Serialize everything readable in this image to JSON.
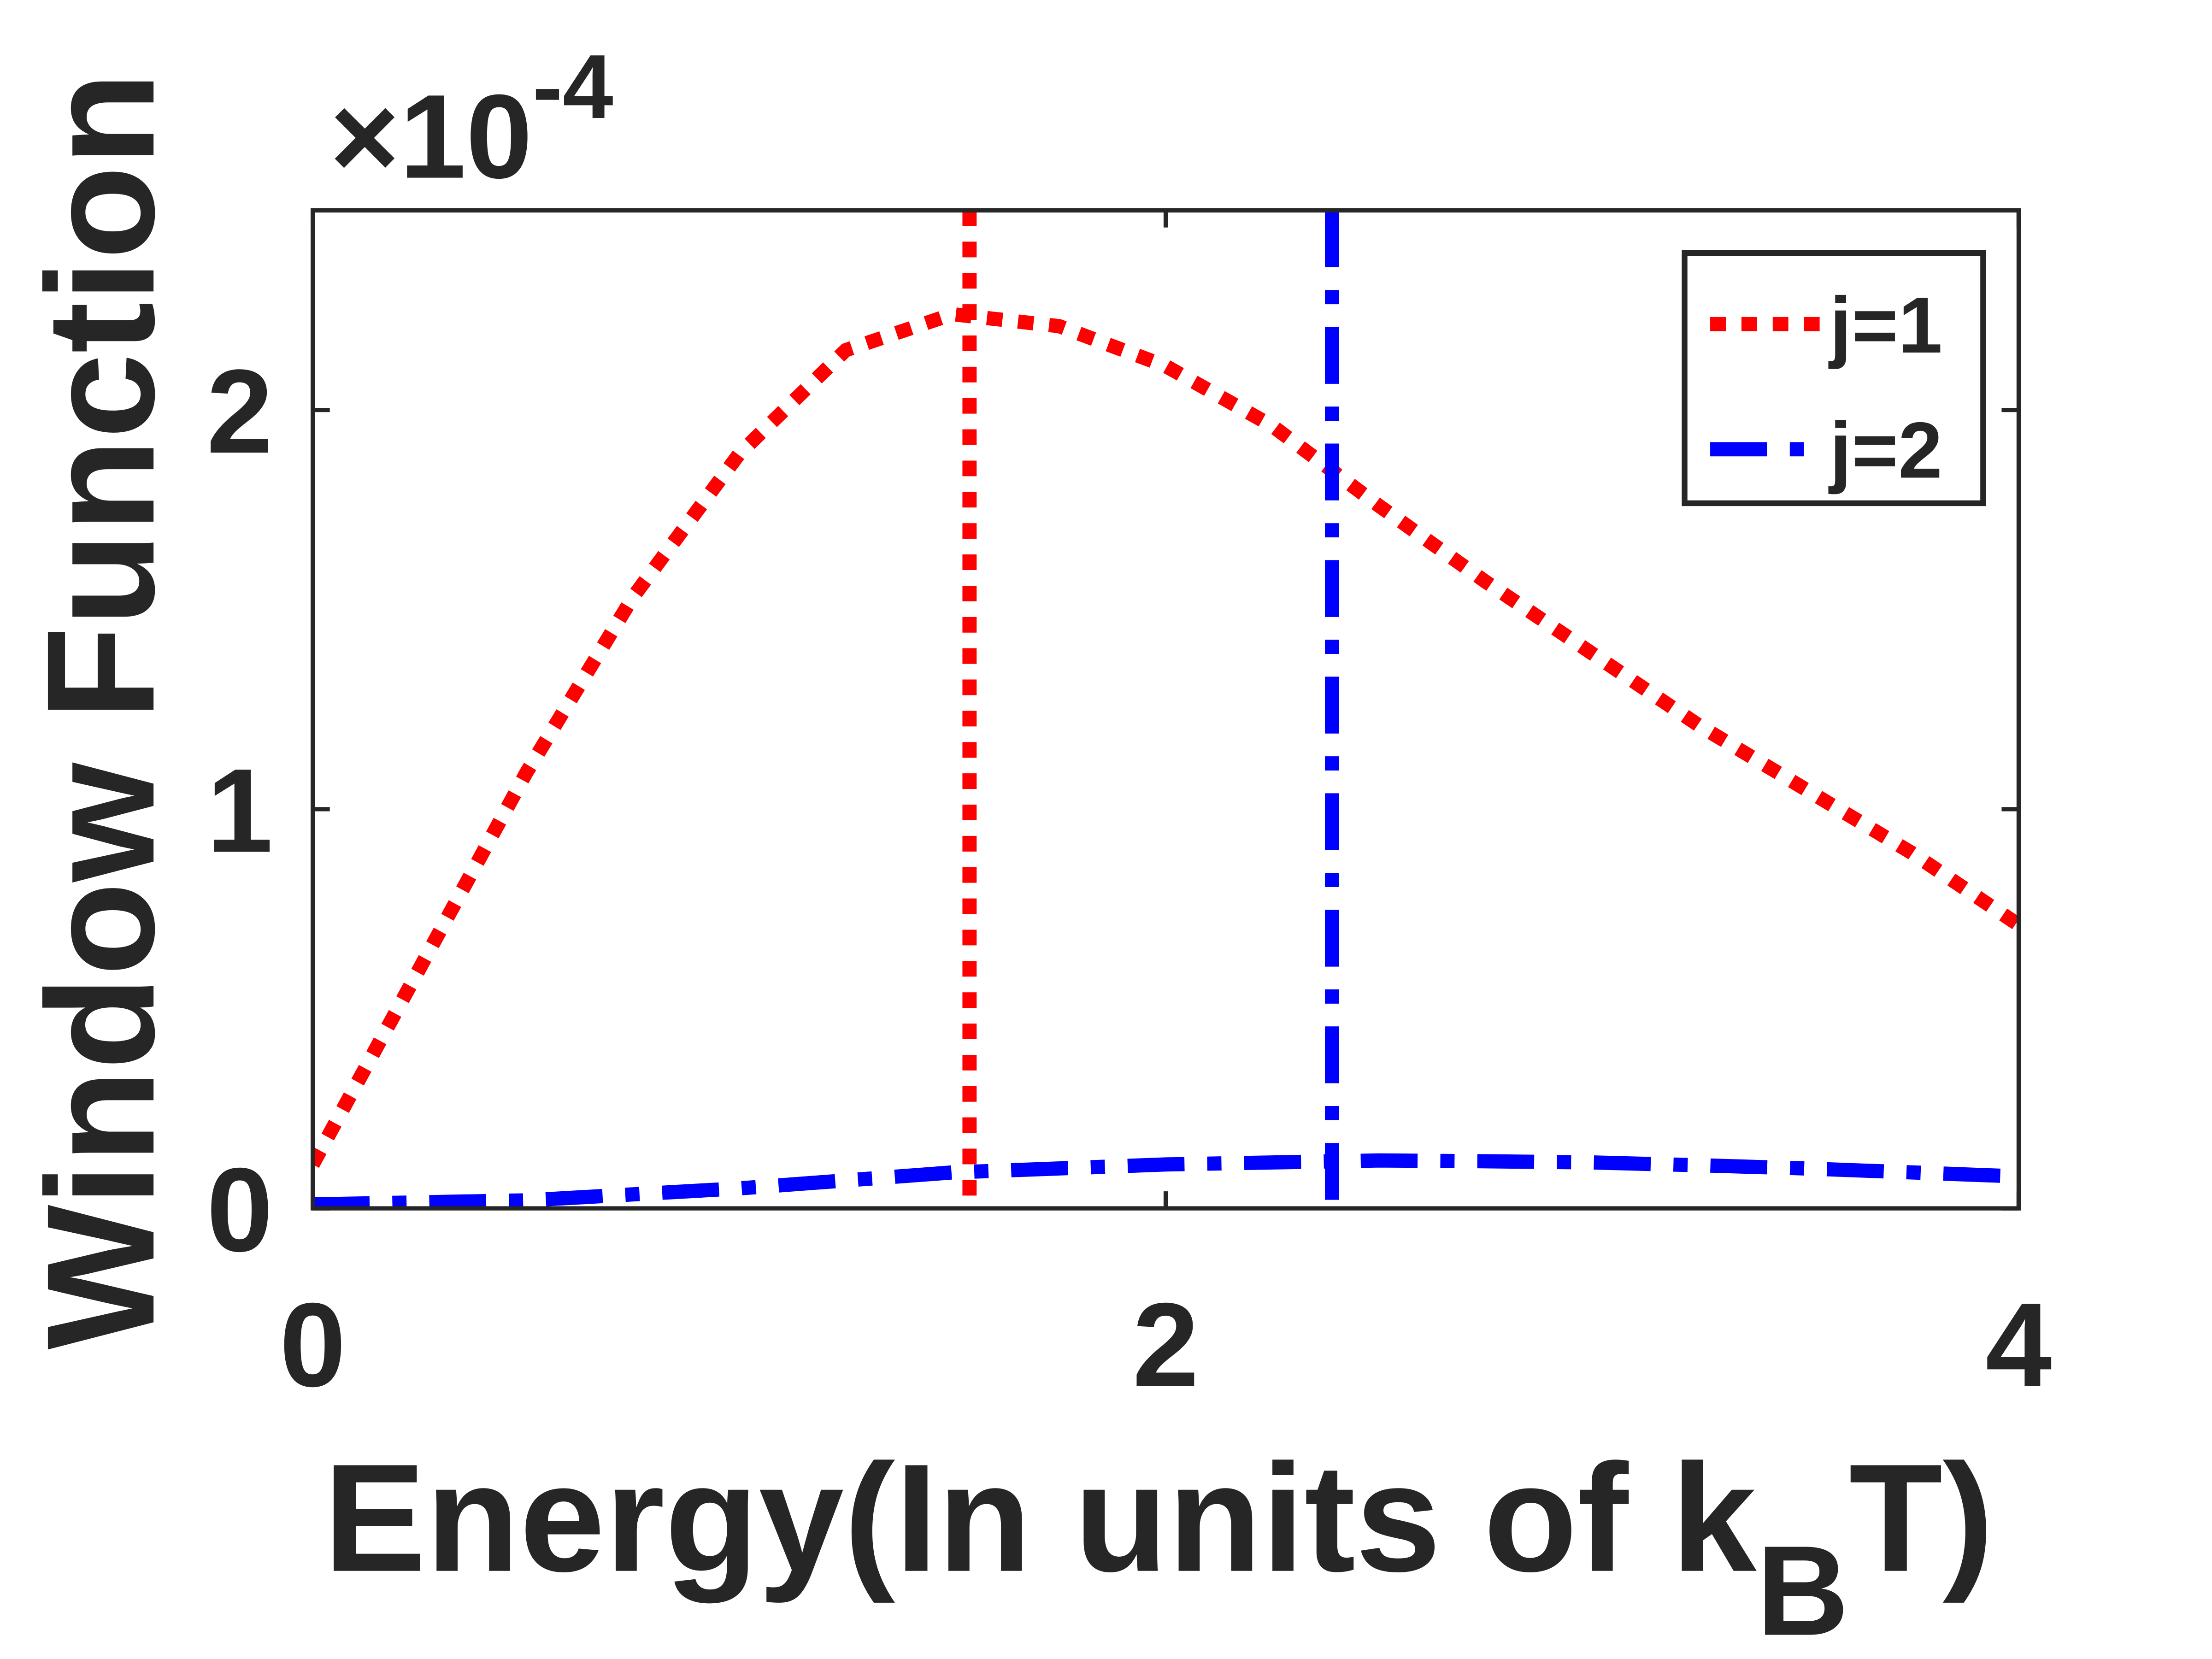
{
  "chart_data": {
    "type": "line",
    "ylabel": "Window Function",
    "xlabel": [
      "Energy(In units of k",
      "B",
      "T)"
    ],
    "y_multiplier": [
      "×10",
      "-4"
    ],
    "x": [
      0,
      0.25,
      0.5,
      0.75,
      1,
      1.25,
      1.5,
      1.75,
      2,
      2.25,
      2.5,
      2.75,
      3,
      3.25,
      3.5,
      3.75,
      4
    ],
    "series": [
      {
        "name": "j=1",
        "color": "#ff0000",
        "style": "dotted",
        "vline": 1.54,
        "values": [
          0.11,
          0.6,
          1.09,
          1.53,
          1.89,
          2.15,
          2.24,
          2.21,
          2.11,
          1.96,
          1.76,
          1.57,
          1.39,
          1.21,
          1.05,
          0.89,
          0.71
        ]
      },
      {
        "name": "j=2",
        "color": "#0000ff",
        "style": "dashdot",
        "vline": 2.39,
        "values": [
          0.01,
          0.015,
          0.02,
          0.035,
          0.05,
          0.07,
          0.09,
          0.1,
          0.11,
          0.115,
          0.12,
          0.118,
          0.115,
          0.108,
          0.1,
          0.09,
          0.08
        ]
      }
    ],
    "xlim": [
      0,
      4
    ],
    "xticks": [
      0,
      2,
      4
    ],
    "ylim": [
      0,
      2.5
    ],
    "yticks": [
      0,
      1,
      2
    ],
    "legend": "upper right",
    "grid": false
  }
}
